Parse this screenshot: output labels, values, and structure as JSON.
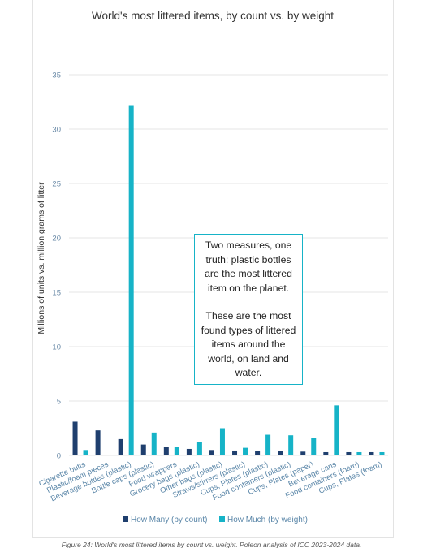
{
  "chart_data": {
    "type": "bar",
    "title": "World's most littered items, by count vs. by weight",
    "ylabel": "Millions of units  vs. million grams of litter",
    "xlabel": "",
    "ylim": [
      0,
      35
    ],
    "yticks": [
      0,
      5,
      10,
      15,
      20,
      25,
      30,
      35
    ],
    "grid": true,
    "legend_position": "bottom",
    "categories": [
      "Cigarette butts",
      "Plastic/foam pieces",
      "Beverage bottles (plastic)",
      "Bottle caps (plastic)",
      "Food wrappers",
      "Grocery bags (plastic)",
      "Other bags (plastic)",
      "Straws/stirrers (plastic)",
      "Cups, Plates (plastic)",
      "Food containers (plastic)",
      "Cups, Plates (paper)",
      "Beverage cans",
      "Food containers (foam)",
      "Cups, Plates (foam)"
    ],
    "series": [
      {
        "name": "How Many (by count)",
        "color": "#1f3f6e",
        "values": [
          3.1,
          2.3,
          1.5,
          1.0,
          0.8,
          0.6,
          0.5,
          0.45,
          0.4,
          0.4,
          0.35,
          0.3,
          0.3,
          0.3
        ]
      },
      {
        "name": "How Much (by weight)",
        "color": "#16b3c7",
        "values": [
          0.5,
          0.05,
          32.2,
          2.1,
          0.8,
          1.2,
          2.5,
          0.7,
          1.9,
          1.85,
          1.6,
          4.6,
          0.3,
          0.3
        ]
      }
    ],
    "annotation": {
      "paragraph1": "Two measures, one truth: plastic bottles are the most littered item on the planet.",
      "paragraph2": "These are the most found types of littered items around the world, on land and water."
    }
  },
  "caption": "Figure 24: World's most littered items by count vs. weight. Poleon analysis of ICC 2023-2024 data."
}
